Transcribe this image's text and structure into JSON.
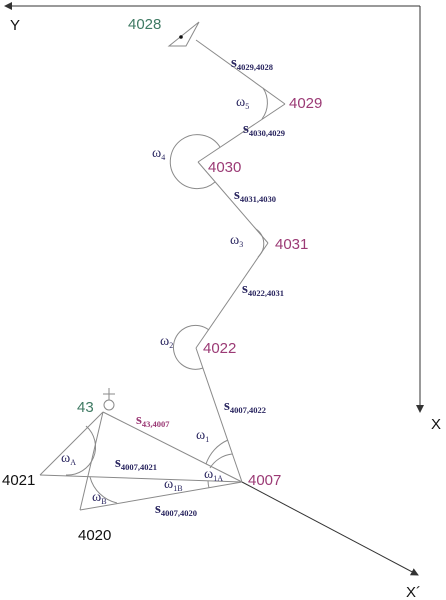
{
  "axes": {
    "y_label": "Y",
    "x_label": "X",
    "x_prime_label": "X´"
  },
  "points": {
    "p4028": "4028",
    "p4029": "4029",
    "p4030": "4030",
    "p4031": "4031",
    "p4022": "4022",
    "p4007": "4007",
    "p43": "43",
    "p4021": "4021",
    "p4020": "4020"
  },
  "sides": {
    "s4029_4028": {
      "main": "s",
      "sub": "4029,4028"
    },
    "s4030_4029": {
      "main": "s",
      "sub": "4030,4029"
    },
    "s4031_4030": {
      "main": "s",
      "sub": "4031,4030"
    },
    "s4022_4031": {
      "main": "s",
      "sub": "4022,4031"
    },
    "s4007_4022": {
      "main": "s",
      "sub": "4007,4022"
    },
    "s43_4007": {
      "main": "s",
      "sub": "43,4007"
    },
    "s4007_4021": {
      "main": "s",
      "sub": "4007,4021"
    },
    "s4007_4020": {
      "main": "s",
      "sub": "4007,4020"
    }
  },
  "angles": {
    "w5": {
      "main": "ω",
      "sub": "5"
    },
    "w4": {
      "main": "ω",
      "sub": "4"
    },
    "w3": {
      "main": "ω",
      "sub": "3"
    },
    "w2": {
      "main": "ω",
      "sub": "2"
    },
    "w1": {
      "main": "ω",
      "sub": "1"
    },
    "wA": {
      "main": "ω",
      "sub": "A"
    },
    "wB": {
      "main": "ω",
      "sub": "B"
    },
    "w1B": {
      "main": "ω",
      "sub": "1B"
    },
    "w1A": {
      "main": "ω",
      "sub": "1A"
    }
  },
  "colors": {
    "purple": "#9b3a75",
    "green": "#3f7a63",
    "navy": "#2a2660",
    "line": "#8a8a8a"
  }
}
